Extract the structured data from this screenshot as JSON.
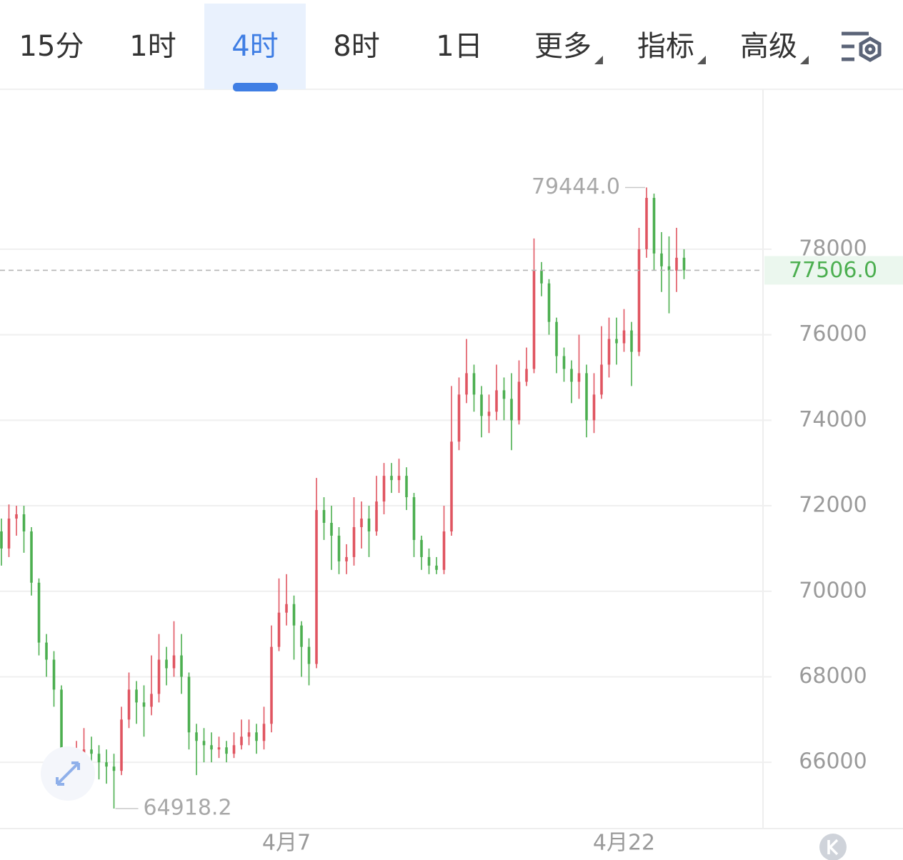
{
  "toolbar": {
    "tabs": [
      {
        "label": "15分"
      },
      {
        "label": "1时"
      },
      {
        "label": "4时",
        "active": true
      },
      {
        "label": "8时"
      },
      {
        "label": "1日"
      }
    ],
    "menus": [
      "更多",
      "指标",
      "高级"
    ]
  },
  "chart_data": {
    "type": "candlestick",
    "up_color": "#e05561",
    "down_color": "#4caf50",
    "ylim": [
      64450,
      81740
    ],
    "yticks": [
      66000,
      68000,
      70000,
      72000,
      74000,
      76000,
      78000
    ],
    "grid": true,
    "categories": [
      null,
      null,
      null,
      null,
      null,
      null,
      null,
      null,
      null,
      null,
      null,
      null,
      null,
      null,
      null,
      null,
      null,
      null,
      null,
      null,
      null,
      null,
      null,
      null,
      null,
      null,
      null,
      null,
      null,
      null,
      null,
      null,
      null,
      null,
      null,
      null,
      null,
      null,
      "4月7",
      null,
      null,
      null,
      null,
      null,
      null,
      null,
      null,
      null,
      null,
      null,
      null,
      null,
      null,
      null,
      null,
      null,
      null,
      null,
      null,
      null,
      null,
      null,
      null,
      null,
      null,
      null,
      null,
      null,
      null,
      null,
      null,
      null,
      null,
      null,
      null,
      null,
      null,
      null,
      null,
      null,
      null,
      null,
      null,
      "4月22",
      null,
      null,
      null,
      null,
      null,
      null,
      null,
      null
    ],
    "open": [
      71400,
      71000,
      71700,
      71800,
      71400,
      70200,
      68800,
      68400,
      67700,
      65700,
      66000,
      66200,
      66300,
      66200,
      66000,
      65900,
      65800,
      67000,
      67700,
      67400,
      67300,
      67600,
      68400,
      68200,
      68500,
      68000,
      66700,
      66500,
      66400,
      66300,
      66350,
      66200,
      66400,
      66600,
      66700,
      66500,
      66900,
      68700,
      69500,
      69700,
      69200,
      68700,
      68300,
      71900,
      71600,
      71300,
      70700,
      70800,
      71500,
      71700,
      71400,
      72100,
      72700,
      72600,
      72700,
      72200,
      71200,
      70800,
      70600,
      70500,
      71400,
      73500,
      74600,
      75100,
      74600,
      74100,
      74200,
      74700,
      74500,
      74000,
      74900,
      75200,
      77500,
      77200,
      76300,
      75500,
      75200,
      74900,
      75100,
      74000,
      74600,
      75300,
      75900,
      75800,
      76100,
      75600,
      78000,
      79200,
      77900,
      77600,
      77500,
      77800
    ],
    "high": [
      71700,
      72030,
      72000,
      72000,
      71500,
      70300,
      69000,
      68600,
      67800,
      66300,
      66500,
      66800,
      66600,
      66400,
      66300,
      66200,
      67300,
      68100,
      67900,
      67800,
      68500,
      69000,
      68700,
      69300,
      69000,
      68100,
      66900,
      66800,
      66700,
      66600,
      66500,
      66700,
      67000,
      67000,
      66900,
      67300,
      69200,
      70300,
      70400,
      69900,
      69300,
      68900,
      72650,
      72200,
      72000,
      71500,
      71100,
      72200,
      72100,
      72000,
      72700,
      73000,
      73000,
      73100,
      72900,
      72300,
      71300,
      71000,
      70800,
      72000,
      74800,
      75000,
      75900,
      75300,
      74800,
      74600,
      75300,
      75000,
      75100,
      75400,
      75700,
      78250,
      77700,
      77300,
      76400,
      75700,
      75400,
      76000,
      75300,
      75100,
      76200,
      76400,
      76400,
      76600,
      76300,
      78500,
      79444,
      79300,
      78400,
      78300,
      78500,
      78000
    ],
    "low": [
      70600,
      70800,
      71300,
      70900,
      69900,
      68500,
      68000,
      67300,
      65300,
      65500,
      65800,
      66000,
      65900,
      65600,
      65500,
      64918.2,
      65700,
      66800,
      66900,
      66600,
      67100,
      67400,
      67800,
      68000,
      67600,
      66300,
      65700,
      66000,
      66000,
      66100,
      66000,
      66100,
      66300,
      66400,
      66200,
      66300,
      66700,
      68600,
      69200,
      68400,
      68000,
      67800,
      68200,
      71200,
      70500,
      70400,
      70400,
      70600,
      71000,
      70800,
      71300,
      71800,
      72300,
      72300,
      71900,
      70800,
      70500,
      70400,
      70400,
      70400,
      71300,
      73300,
      74400,
      74200,
      73600,
      73700,
      74000,
      74000,
      73300,
      73900,
      74800,
      75100,
      76900,
      76000,
      75100,
      74900,
      74400,
      74500,
      73600,
      73700,
      74500,
      75000,
      75300,
      75600,
      74800,
      75500,
      77800,
      77500,
      77000,
      76500,
      77000,
      77300
    ],
    "close": [
      71000,
      71700,
      71800,
      71400,
      70200,
      68800,
      68400,
      67700,
      65700,
      66000,
      66200,
      66300,
      66200,
      66000,
      65900,
      65800,
      67000,
      67700,
      67400,
      67300,
      67600,
      68400,
      68200,
      68500,
      68000,
      66700,
      66500,
      66400,
      66300,
      66350,
      66200,
      66400,
      66600,
      66700,
      66500,
      66900,
      68700,
      69500,
      69700,
      69200,
      68700,
      68300,
      71900,
      71600,
      71300,
      70700,
      70800,
      71500,
      71700,
      71400,
      72100,
      72700,
      72600,
      72700,
      72200,
      71200,
      70800,
      70600,
      70500,
      71400,
      73500,
      74600,
      75100,
      74600,
      74100,
      74200,
      74700,
      74500,
      74000,
      74900,
      75200,
      77500,
      77200,
      76300,
      75500,
      75200,
      74900,
      75100,
      74000,
      74600,
      75300,
      75900,
      75800,
      76100,
      75600,
      78000,
      79200,
      77900,
      77600,
      77500,
      77800,
      77506
    ],
    "high_annotation": {
      "value": 79444,
      "label": "79444.0"
    },
    "low_annotation": 64918.2,
    "last_price": {
      "value": 77506,
      "label": "77506.0"
    }
  }
}
